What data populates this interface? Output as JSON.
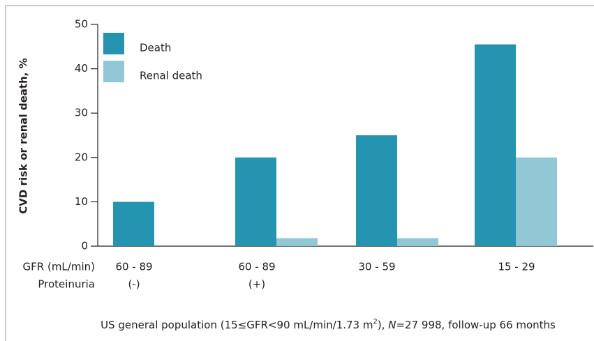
{
  "chart_data": {
    "type": "bar",
    "y_label": "CVD risk or renal death, %",
    "category_label": "GFR (mL/min)",
    "categories": [
      "60 - 89",
      "60 - 89",
      "30 - 59",
      "15 - 29"
    ],
    "subcategory_label": "Proteinuria",
    "subcategories": [
      "(-)",
      "(+)",
      null,
      null
    ],
    "series": [
      {
        "name": "Death",
        "color": "#2494b0",
        "values": [
          10,
          20,
          25,
          45.5
        ]
      },
      {
        "name": "Renal death",
        "color": "#92c8d5",
        "values": [
          null,
          1.8,
          1.8,
          20
        ]
      }
    ],
    "ylim": [
      0,
      50
    ],
    "yticks": [
      0,
      10,
      20,
      30,
      40,
      50
    ],
    "legend": "top-left",
    "footnote": [
      "US general population (15≤GFR<90 mL/min/1.73 m",
      "2",
      "), ",
      "N",
      "=27 998, follow-up 66 months"
    ]
  }
}
